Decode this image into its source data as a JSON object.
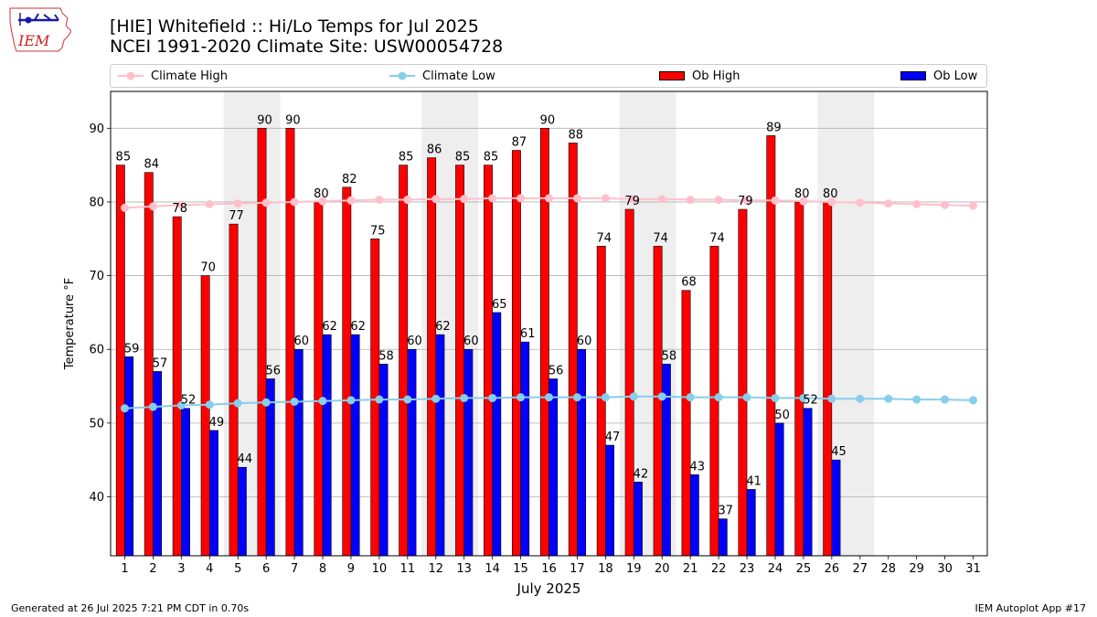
{
  "logo": {
    "text": "IEM"
  },
  "title": {
    "line1": "[HIE] Whitefield :: Hi/Lo Temps for Jul 2025",
    "line2": "NCEI 1991-2020 Climate Site: USW00054728"
  },
  "legend": {
    "climate_high": "Climate High",
    "climate_low": "Climate Low",
    "ob_high": "Ob High",
    "ob_low": "Ob Low"
  },
  "footer": {
    "generated": "Generated at 26 Jul 2025 7:21 PM CDT in 0.70s",
    "app": "IEM Autoplot App #17"
  },
  "colors": {
    "ob_high": "#ff0000",
    "ob_low": "#0000ff",
    "climate_high": "#ffc0cb",
    "climate_low": "#87ceeb",
    "weekend_shade": "#eeeeee",
    "grid": "#b0b0b0"
  },
  "chart_data": {
    "type": "bar",
    "xlabel": "July 2025",
    "ylabel": "Temperature °F",
    "ylim": [
      32,
      95
    ],
    "yticks": [
      40,
      50,
      60,
      70,
      80,
      90
    ],
    "grid": "horizontal",
    "legend_position": "top",
    "days": [
      1,
      2,
      3,
      4,
      5,
      6,
      7,
      8,
      9,
      10,
      11,
      12,
      13,
      14,
      15,
      16,
      17,
      18,
      19,
      20,
      21,
      22,
      23,
      24,
      25,
      26,
      27,
      28,
      29,
      30,
      31
    ],
    "shaded_days": [
      [
        5,
        6
      ],
      [
        12,
        13
      ],
      [
        19,
        20
      ],
      [
        26,
        27
      ]
    ],
    "ob_high": [
      85,
      84,
      78,
      70,
      77,
      90,
      90,
      80,
      82,
      75,
      85,
      86,
      85,
      85,
      87,
      90,
      88,
      74,
      79,
      74,
      68,
      74,
      79,
      89,
      80,
      80
    ],
    "ob_low": [
      59,
      57,
      52,
      49,
      44,
      56,
      60,
      62,
      62,
      58,
      60,
      62,
      60,
      65,
      61,
      56,
      60,
      47,
      42,
      58,
      43,
      37,
      41,
      50,
      52,
      45
    ],
    "climate_high": [
      79.2,
      79.4,
      79.6,
      79.7,
      79.8,
      79.9,
      80.0,
      80.1,
      80.2,
      80.3,
      80.3,
      80.4,
      80.4,
      80.5,
      80.5,
      80.5,
      80.5,
      80.5,
      80.4,
      80.4,
      80.3,
      80.3,
      80.2,
      80.2,
      80.1,
      80.0,
      79.9,
      79.8,
      79.7,
      79.6,
      79.5
    ],
    "climate_low": [
      52.0,
      52.2,
      52.4,
      52.5,
      52.7,
      52.8,
      52.9,
      53.0,
      53.1,
      53.2,
      53.2,
      53.3,
      53.4,
      53.4,
      53.5,
      53.5,
      53.5,
      53.5,
      53.6,
      53.6,
      53.5,
      53.5,
      53.5,
      53.4,
      53.4,
      53.3,
      53.3,
      53.3,
      53.2,
      53.2,
      53.1
    ]
  }
}
